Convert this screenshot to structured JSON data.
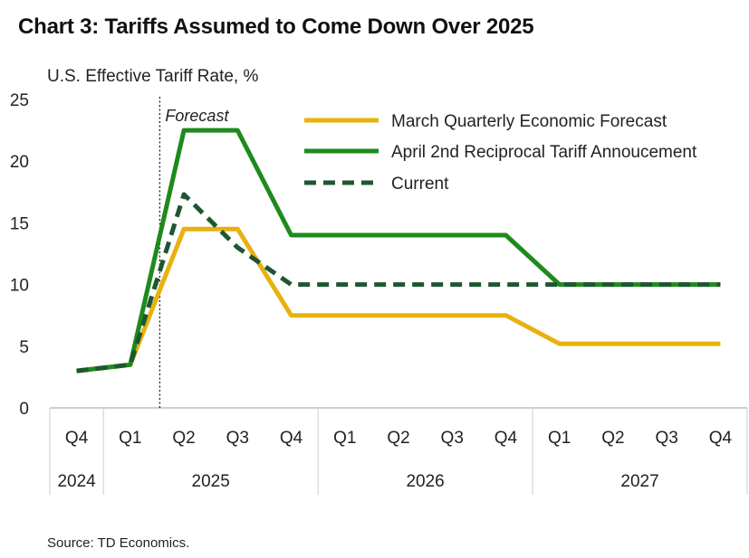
{
  "chart_data": {
    "type": "line",
    "title": "Chart 3: Tariffs Assumed to Come Down Over 2025",
    "ylabel": "U.S. Effective Tariff Rate, %",
    "xlabel": "",
    "ylim": [
      0,
      25
    ],
    "yticks": [
      "0",
      "5",
      "10",
      "15",
      "20",
      "25"
    ],
    "categories": [
      "Q4",
      "Q1",
      "Q2",
      "Q3",
      "Q4",
      "Q1",
      "Q2",
      "Q3",
      "Q4",
      "Q1",
      "Q2",
      "Q3",
      "Q4"
    ],
    "year_groups": [
      {
        "label": "2024",
        "start": 0,
        "end": 0
      },
      {
        "label": "2025",
        "start": 1,
        "end": 4
      },
      {
        "label": "2026",
        "start": 5,
        "end": 8
      },
      {
        "label": "2027",
        "start": 9,
        "end": 12
      }
    ],
    "forecast_label": "Forecast",
    "forecast_at": 1.55,
    "series": [
      {
        "name": "March Quarterly Economic Forecast",
        "color": "#E8B10E",
        "style": "solid",
        "values": [
          3.0,
          3.5,
          14.5,
          14.5,
          7.5,
          7.5,
          7.5,
          7.5,
          7.5,
          5.2,
          5.2,
          5.2,
          5.2
        ]
      },
      {
        "name": "April 2nd Reciprocal Tariff Annoucement",
        "color": "#1F8A1C",
        "style": "solid",
        "values": [
          3.0,
          3.5,
          22.5,
          22.5,
          14.0,
          14.0,
          14.0,
          14.0,
          14.0,
          10.0,
          10.0,
          10.0,
          10.0
        ]
      },
      {
        "name": "Current",
        "color": "#1E5631",
        "style": "dashed",
        "values": [
          3.0,
          3.5,
          17.3,
          13.0,
          10.0,
          10.0,
          10.0,
          10.0,
          10.0,
          10.0,
          10.0,
          10.0,
          10.0
        ]
      }
    ],
    "legend_position": "top-right",
    "grid": false
  },
  "source": "Source: TD Economics."
}
